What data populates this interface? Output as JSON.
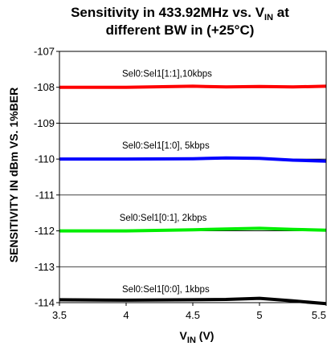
{
  "chart_data": {
    "type": "line",
    "title_line1_prefix": "Sensitivity in 433.92MHz vs. V",
    "title_line1_sub": "IN",
    "title_line1_suffix": " at",
    "title_line2": "different BW in (+25°C)",
    "xlabel_main": "V",
    "xlabel_sub": "IN",
    "xlabel_suffix": " (V)",
    "ylabel": "SENSITIVITY IN dBm VS. 1%BER",
    "xlim": [
      3.5,
      5.5
    ],
    "ylim": [
      -114,
      -107
    ],
    "x_ticks": [
      "3.5",
      "4",
      "4.5",
      "5",
      "5.5"
    ],
    "y_ticks": [
      "-107",
      "-108",
      "-109",
      "-110",
      "-111",
      "-112",
      "-113",
      "-114"
    ],
    "grid": "horizontal",
    "series": [
      {
        "name": "Sel0:Sel1[1:1],10kbps",
        "color": "#ff0000",
        "label_x": 3.97,
        "label_y": -107.7,
        "x": [
          3.5,
          4.0,
          4.5,
          4.75,
          5.0,
          5.25,
          5.5
        ],
        "y": [
          -108.0,
          -108.0,
          -107.97,
          -107.99,
          -107.98,
          -107.99,
          -107.97
        ]
      },
      {
        "name": "Sel0:Sel1[1:0], 5kbps",
        "color": "#0000ff",
        "label_x": 3.97,
        "label_y": -109.71,
        "x": [
          3.5,
          4.0,
          4.5,
          4.75,
          5.0,
          5.25,
          5.5
        ],
        "y": [
          -110.0,
          -110.0,
          -109.99,
          -109.97,
          -109.98,
          -110.03,
          -110.06
        ]
      },
      {
        "name": "Sel0:Sel1[0:1], 2kbps",
        "color": "#00ee00",
        "label_x": 3.95,
        "label_y": -111.72,
        "x": [
          3.5,
          4.0,
          4.5,
          4.75,
          5.0,
          5.25,
          5.5
        ],
        "y": [
          -112.0,
          -112.0,
          -111.97,
          -111.95,
          -111.93,
          -111.96,
          -111.98
        ]
      },
      {
        "name": "Sel0:Sel1[0:0], 1kbps",
        "color": "#000000",
        "label_x": 3.97,
        "label_y": -113.71,
        "x": [
          3.5,
          4.0,
          4.5,
          4.75,
          5.0,
          5.25,
          5.5
        ],
        "y": [
          -113.92,
          -113.93,
          -113.92,
          -113.91,
          -113.88,
          -113.95,
          -114.03
        ]
      }
    ]
  }
}
